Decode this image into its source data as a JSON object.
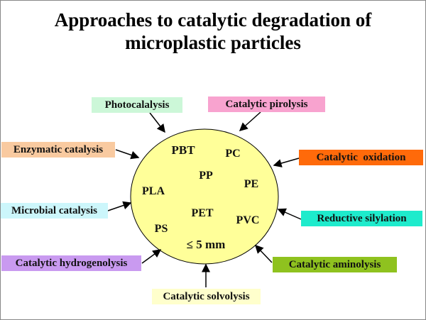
{
  "title": {
    "line1": "Approaches to catalytic degradation of",
    "line2": "microplastic particles"
  },
  "center": {
    "fill": "#ffff99",
    "polymers": [
      "PBT",
      "PC",
      "PP",
      "PE",
      "PLA",
      "PET",
      "PVC",
      "PS"
    ],
    "size_label": "≤ 5 mm"
  },
  "approaches": [
    {
      "label": "Photocalalysis",
      "color": "#ccf7d8"
    },
    {
      "label": "Catalytic pirolysis",
      "color": "#f8a3cf"
    },
    {
      "label": "Enzymatic catalysis",
      "color": "#f9caa0"
    },
    {
      "label": "Catalytic  oxidation",
      "color": "#ff6a0a"
    },
    {
      "label": "Microbial catalysis",
      "color": "#ccf6fb"
    },
    {
      "label": "Reductive silylation",
      "color": "#1eebcc"
    },
    {
      "label": "Catalytic hydrogenolysis",
      "color": "#c99af0"
    },
    {
      "label": "Catalytic aminolysis",
      "color": "#8fc21f"
    },
    {
      "label": "Catalytic solvolysis",
      "color": "#ffffcc"
    }
  ]
}
